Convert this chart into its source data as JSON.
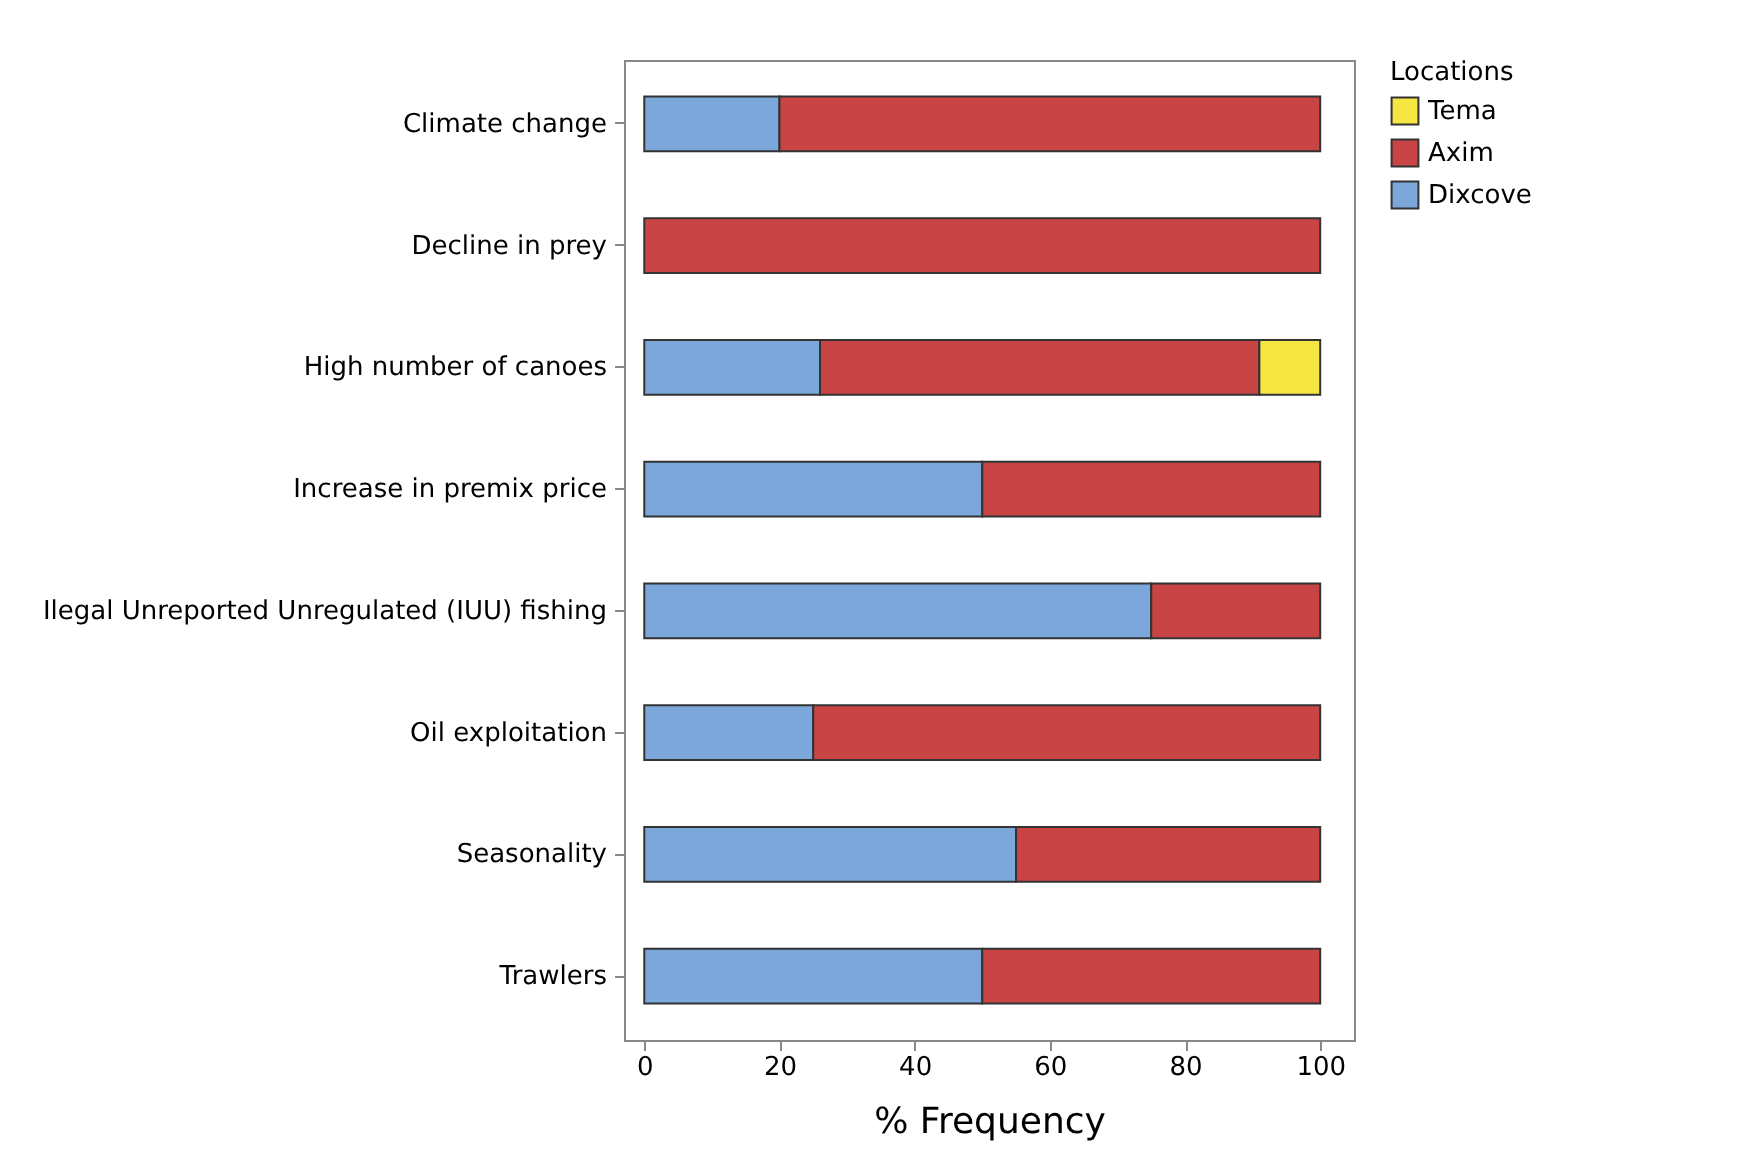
{
  "chart_data": {
    "type": "bar",
    "orientation": "horizontal",
    "stacked": true,
    "categories": [
      "Climate change",
      "Decline in prey",
      "High number of canoes",
      "Increase in premix price",
      "Ilegal Unreported Unregulated (IUU) fishing",
      "Oil exploitation",
      "Seasonality",
      "Trawlers"
    ],
    "series": [
      {
        "name": "Dixcove",
        "color": "#7ba7db",
        "values": [
          20,
          0,
          26,
          50,
          75,
          25,
          55,
          50
        ]
      },
      {
        "name": "Axim",
        "color": "#c94444",
        "values": [
          80,
          100,
          65,
          50,
          25,
          75,
          45,
          50
        ]
      },
      {
        "name": "Tema",
        "color": "#f5e642",
        "values": [
          0,
          0,
          9,
          0,
          0,
          0,
          0,
          0
        ]
      }
    ],
    "xlabel": "% Frequency",
    "legend_title": "Locations",
    "legend": "right",
    "xlim": [
      -3,
      105
    ],
    "xticks": [
      0,
      20,
      40,
      60,
      80,
      100
    ],
    "grid": false
  }
}
